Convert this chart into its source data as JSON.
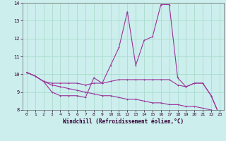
{
  "title": "",
  "xlabel": "Windchill (Refroidissement éolien,°C)",
  "ylabel": "",
  "background_color": "#cceeed",
  "line_color": "#993399",
  "grid_color": "#aaddcc",
  "xlim": [
    -0.5,
    23.5
  ],
  "ylim": [
    8,
    14
  ],
  "yticks": [
    8,
    9,
    10,
    11,
    12,
    13,
    14
  ],
  "xticks": [
    0,
    1,
    2,
    3,
    4,
    5,
    6,
    7,
    8,
    9,
    10,
    11,
    12,
    13,
    14,
    15,
    16,
    17,
    18,
    19,
    20,
    21,
    22,
    23
  ],
  "series1_x": [
    0,
    1,
    2,
    3,
    4,
    5,
    6,
    7,
    8,
    9,
    10,
    11,
    12,
    13,
    14,
    15,
    16,
    17,
    18,
    19,
    20,
    21,
    22,
    23
  ],
  "series1_y": [
    10.1,
    9.9,
    9.6,
    9.0,
    8.8,
    8.8,
    8.8,
    8.7,
    9.8,
    9.5,
    10.5,
    11.5,
    13.5,
    10.5,
    11.9,
    12.1,
    13.9,
    13.9,
    9.8,
    9.3,
    9.5,
    9.5,
    8.8,
    7.7
  ],
  "series2_x": [
    0,
    1,
    2,
    3,
    4,
    5,
    6,
    7,
    8,
    9,
    10,
    11,
    12,
    13,
    14,
    15,
    16,
    17,
    18,
    19,
    20,
    21,
    22,
    23
  ],
  "series2_y": [
    10.1,
    9.9,
    9.6,
    9.5,
    9.5,
    9.5,
    9.5,
    9.4,
    9.5,
    9.5,
    9.6,
    9.7,
    9.7,
    9.7,
    9.7,
    9.7,
    9.7,
    9.7,
    9.4,
    9.3,
    9.5,
    9.5,
    8.8,
    7.7
  ],
  "series3_x": [
    0,
    1,
    2,
    3,
    4,
    5,
    6,
    7,
    8,
    9,
    10,
    11,
    12,
    13,
    14,
    15,
    16,
    17,
    18,
    19,
    20,
    21,
    22,
    23
  ],
  "series3_y": [
    10.1,
    9.9,
    9.6,
    9.4,
    9.3,
    9.2,
    9.1,
    9.0,
    8.9,
    8.8,
    8.8,
    8.7,
    8.6,
    8.6,
    8.5,
    8.4,
    8.4,
    8.3,
    8.3,
    8.2,
    8.2,
    8.1,
    8.0,
    7.8
  ],
  "tick_fontsize": 5,
  "xlabel_fontsize": 5.5,
  "marker_size": 2,
  "linewidth": 0.8
}
